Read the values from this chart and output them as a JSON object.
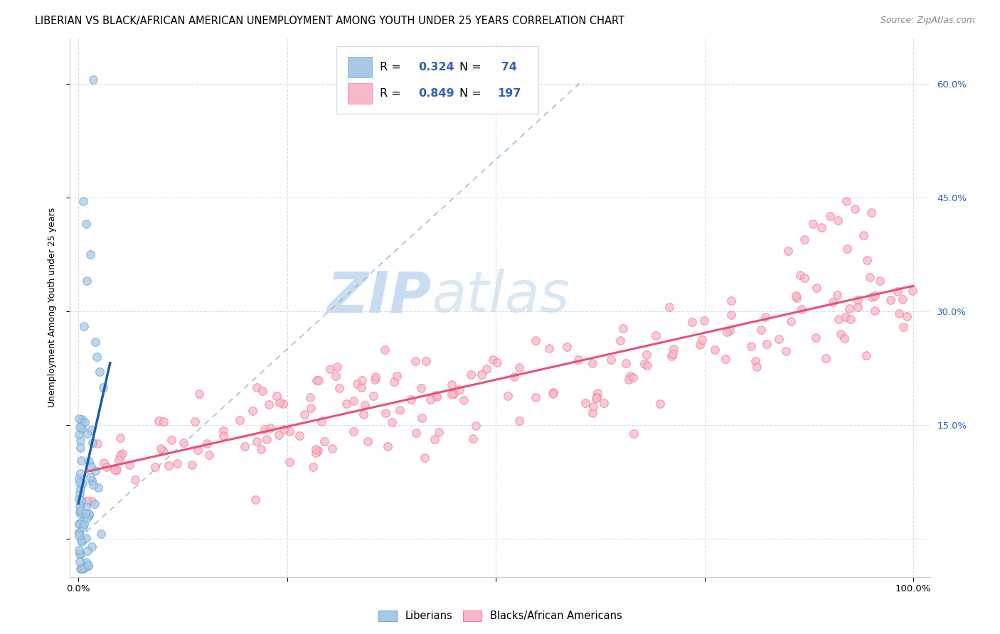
{
  "title": "LIBERIAN VS BLACK/AFRICAN AMERICAN UNEMPLOYMENT AMONG YOUTH UNDER 25 YEARS CORRELATION CHART",
  "source": "Source: ZipAtlas.com",
  "ylabel": "Unemployment Among Youth under 25 years",
  "xlim": [
    -0.01,
    1.02
  ],
  "ylim": [
    -0.05,
    0.66
  ],
  "y_ticks": [
    0.0,
    0.15,
    0.3,
    0.45,
    0.6
  ],
  "y_tick_labels": [
    "",
    "15.0%",
    "30.0%",
    "45.0%",
    "60.0%"
  ],
  "x_ticks": [
    0.0,
    0.25,
    0.5,
    0.75,
    1.0
  ],
  "x_tick_labels": [
    "0.0%",
    "",
    "",
    "",
    "100.0%"
  ],
  "legend_R1": "0.324",
  "legend_N1": " 74",
  "legend_R2": "0.849",
  "legend_N2": "197",
  "blue_color": "#a8c8e8",
  "blue_edge_color": "#6aaad4",
  "pink_color": "#f8b8c8",
  "pink_edge_color": "#f08090",
  "blue_line_color": "#1a5fa8",
  "pink_line_color": "#e8507a",
  "diagonal_color": "#9ab8d8",
  "legend_text_color": "#3060c0",
  "tick_color": "#3060c0",
  "watermark_zip": "ZIP",
  "watermark_atlas": "atlas",
  "watermark_color": "#dce8f4",
  "background_color": "#ffffff",
  "title_fontsize": 10.5,
  "source_fontsize": 9,
  "axis_label_fontsize": 9,
  "tick_fontsize": 9.5,
  "legend_fontsize": 11.5
}
